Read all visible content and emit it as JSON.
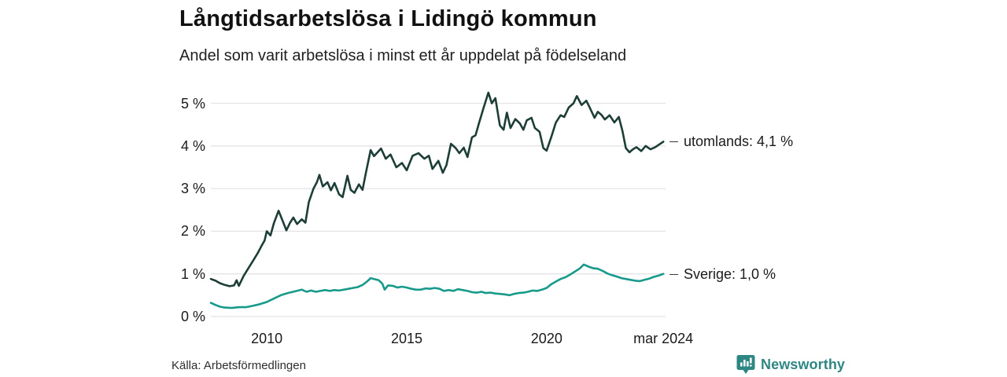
{
  "header": {
    "title": "Långtidsarbetslösa i Lidingö kommun",
    "subtitle": "Andel som varit arbetslösa i minst ett år uppdelat på födelseland"
  },
  "footer": {
    "source": "Källa: Arbetsförmedlingen",
    "brand_name": "Newsworthy",
    "brand_icon": "bar-chart-speech-bubble-icon"
  },
  "colors": {
    "utomlands_line": "#1d3e37",
    "sverige_line": "#189a8b",
    "grid": "#e3e3e8",
    "text": "#1a1a1a",
    "brand_teal": "#2e8783"
  },
  "chart_data": {
    "type": "line",
    "title": "Långtidsarbetslösa i Lidingö kommun",
    "subtitle": "Andel som varit arbetslösa i minst ett år uppdelat på födelseland",
    "x_unit": "year (monthly series, jan 2008 – mar 2024)",
    "xlim": [
      2008.0,
      2024.25
    ],
    "ylim": [
      0,
      5.5
    ],
    "grid": "horizontal",
    "legend_position": "end-of-line-labels",
    "y_ticks": [
      {
        "v": 0,
        "label": "0 %"
      },
      {
        "v": 1,
        "label": "1 %"
      },
      {
        "v": 2,
        "label": "2 %"
      },
      {
        "v": 3,
        "label": "3 %"
      },
      {
        "v": 4,
        "label": "4 %"
      },
      {
        "v": 5,
        "label": "5 %"
      }
    ],
    "x_ticks": [
      {
        "x": 2010,
        "label": "2010"
      },
      {
        "x": 2015,
        "label": "2015"
      },
      {
        "x": 2020,
        "label": "2020"
      },
      {
        "x": 2024.17,
        "label": "mar 2024"
      }
    ],
    "series": [
      {
        "name": "utomlands",
        "label": "utomlands: 4,1 %",
        "last_value": "4,1 %",
        "color": "#1d3e37",
        "points": [
          [
            2008.0,
            0.88
          ],
          [
            2008.17,
            0.84
          ],
          [
            2008.33,
            0.78
          ],
          [
            2008.5,
            0.74
          ],
          [
            2008.67,
            0.71
          ],
          [
            2008.83,
            0.73
          ],
          [
            2008.92,
            0.85
          ],
          [
            2009.0,
            0.72
          ],
          [
            2009.17,
            0.95
          ],
          [
            2009.33,
            1.12
          ],
          [
            2009.5,
            1.3
          ],
          [
            2009.67,
            1.48
          ],
          [
            2009.83,
            1.68
          ],
          [
            2009.92,
            1.78
          ],
          [
            2010.0,
            2.0
          ],
          [
            2010.13,
            1.9
          ],
          [
            2010.25,
            2.18
          ],
          [
            2010.42,
            2.48
          ],
          [
            2010.58,
            2.22
          ],
          [
            2010.7,
            2.02
          ],
          [
            2010.83,
            2.2
          ],
          [
            2010.95,
            2.32
          ],
          [
            2011.08,
            2.17
          ],
          [
            2011.25,
            2.28
          ],
          [
            2011.38,
            2.2
          ],
          [
            2011.5,
            2.68
          ],
          [
            2011.67,
            3.0
          ],
          [
            2011.79,
            3.15
          ],
          [
            2011.88,
            3.32
          ],
          [
            2012.0,
            3.05
          ],
          [
            2012.17,
            3.15
          ],
          [
            2012.29,
            2.96
          ],
          [
            2012.42,
            3.13
          ],
          [
            2012.58,
            2.87
          ],
          [
            2012.71,
            2.8
          ],
          [
            2012.88,
            3.3
          ],
          [
            2013.0,
            2.97
          ],
          [
            2013.13,
            2.9
          ],
          [
            2013.29,
            3.1
          ],
          [
            2013.42,
            2.97
          ],
          [
            2013.54,
            3.37
          ],
          [
            2013.71,
            3.9
          ],
          [
            2013.83,
            3.76
          ],
          [
            2013.96,
            3.85
          ],
          [
            2014.08,
            3.94
          ],
          [
            2014.25,
            3.7
          ],
          [
            2014.42,
            3.8
          ],
          [
            2014.63,
            3.5
          ],
          [
            2014.83,
            3.6
          ],
          [
            2015.0,
            3.43
          ],
          [
            2015.21,
            3.77
          ],
          [
            2015.42,
            3.83
          ],
          [
            2015.63,
            3.7
          ],
          [
            2015.79,
            3.77
          ],
          [
            2015.92,
            3.46
          ],
          [
            2016.13,
            3.65
          ],
          [
            2016.29,
            3.37
          ],
          [
            2016.42,
            3.55
          ],
          [
            2016.58,
            4.05
          ],
          [
            2016.75,
            3.95
          ],
          [
            2016.88,
            3.83
          ],
          [
            2017.04,
            3.96
          ],
          [
            2017.17,
            3.74
          ],
          [
            2017.33,
            4.2
          ],
          [
            2017.46,
            4.25
          ],
          [
            2017.58,
            4.53
          ],
          [
            2017.75,
            4.9
          ],
          [
            2017.92,
            5.25
          ],
          [
            2018.04,
            5.0
          ],
          [
            2018.17,
            5.12
          ],
          [
            2018.33,
            4.48
          ],
          [
            2018.46,
            4.38
          ],
          [
            2018.58,
            4.78
          ],
          [
            2018.71,
            4.42
          ],
          [
            2018.88,
            4.63
          ],
          [
            2019.04,
            4.53
          ],
          [
            2019.17,
            4.38
          ],
          [
            2019.29,
            4.6
          ],
          [
            2019.46,
            4.66
          ],
          [
            2019.58,
            4.42
          ],
          [
            2019.75,
            4.33
          ],
          [
            2019.88,
            3.95
          ],
          [
            2020.0,
            3.89
          ],
          [
            2020.17,
            4.22
          ],
          [
            2020.33,
            4.55
          ],
          [
            2020.5,
            4.72
          ],
          [
            2020.63,
            4.68
          ],
          [
            2020.79,
            4.9
          ],
          [
            2020.96,
            5.0
          ],
          [
            2021.08,
            5.17
          ],
          [
            2021.25,
            4.96
          ],
          [
            2021.42,
            5.06
          ],
          [
            2021.54,
            4.9
          ],
          [
            2021.71,
            4.66
          ],
          [
            2021.83,
            4.8
          ],
          [
            2021.96,
            4.73
          ],
          [
            2022.08,
            4.62
          ],
          [
            2022.25,
            4.72
          ],
          [
            2022.42,
            4.55
          ],
          [
            2022.58,
            4.68
          ],
          [
            2022.71,
            4.35
          ],
          [
            2022.83,
            3.95
          ],
          [
            2022.96,
            3.85
          ],
          [
            2023.08,
            3.92
          ],
          [
            2023.21,
            3.97
          ],
          [
            2023.38,
            3.88
          ],
          [
            2023.54,
            4.0
          ],
          [
            2023.71,
            3.92
          ],
          [
            2023.88,
            3.97
          ],
          [
            2024.04,
            4.04
          ],
          [
            2024.17,
            4.1
          ]
        ]
      },
      {
        "name": "Sverige",
        "label": "Sverige: 1,0 %",
        "last_value": "1,0 %",
        "color": "#189a8b",
        "points": [
          [
            2008.0,
            0.32
          ],
          [
            2008.17,
            0.27
          ],
          [
            2008.33,
            0.23
          ],
          [
            2008.5,
            0.21
          ],
          [
            2008.75,
            0.2
          ],
          [
            2009.0,
            0.22
          ],
          [
            2009.25,
            0.22
          ],
          [
            2009.5,
            0.25
          ],
          [
            2009.75,
            0.29
          ],
          [
            2010.0,
            0.34
          ],
          [
            2010.25,
            0.42
          ],
          [
            2010.5,
            0.5
          ],
          [
            2010.75,
            0.55
          ],
          [
            2011.0,
            0.59
          ],
          [
            2011.25,
            0.63
          ],
          [
            2011.42,
            0.58
          ],
          [
            2011.58,
            0.61
          ],
          [
            2011.75,
            0.58
          ],
          [
            2011.92,
            0.6
          ],
          [
            2012.08,
            0.62
          ],
          [
            2012.25,
            0.6
          ],
          [
            2012.42,
            0.62
          ],
          [
            2012.58,
            0.61
          ],
          [
            2012.75,
            0.63
          ],
          [
            2012.92,
            0.65
          ],
          [
            2013.08,
            0.67
          ],
          [
            2013.25,
            0.69
          ],
          [
            2013.42,
            0.74
          ],
          [
            2013.58,
            0.82
          ],
          [
            2013.71,
            0.9
          ],
          [
            2013.83,
            0.88
          ],
          [
            2014.0,
            0.85
          ],
          [
            2014.13,
            0.77
          ],
          [
            2014.21,
            0.63
          ],
          [
            2014.33,
            0.73
          ],
          [
            2014.5,
            0.72
          ],
          [
            2014.67,
            0.68
          ],
          [
            2014.83,
            0.7
          ],
          [
            2015.0,
            0.68
          ],
          [
            2015.17,
            0.65
          ],
          [
            2015.33,
            0.63
          ],
          [
            2015.5,
            0.63
          ],
          [
            2015.67,
            0.66
          ],
          [
            2015.83,
            0.65
          ],
          [
            2016.0,
            0.67
          ],
          [
            2016.17,
            0.65
          ],
          [
            2016.33,
            0.6
          ],
          [
            2016.5,
            0.62
          ],
          [
            2016.67,
            0.6
          ],
          [
            2016.83,
            0.64
          ],
          [
            2017.0,
            0.62
          ],
          [
            2017.17,
            0.6
          ],
          [
            2017.33,
            0.57
          ],
          [
            2017.5,
            0.56
          ],
          [
            2017.67,
            0.58
          ],
          [
            2017.83,
            0.55
          ],
          [
            2018.0,
            0.56
          ],
          [
            2018.17,
            0.54
          ],
          [
            2018.33,
            0.53
          ],
          [
            2018.5,
            0.52
          ],
          [
            2018.67,
            0.5
          ],
          [
            2018.83,
            0.53
          ],
          [
            2019.0,
            0.55
          ],
          [
            2019.17,
            0.56
          ],
          [
            2019.33,
            0.58
          ],
          [
            2019.5,
            0.61
          ],
          [
            2019.67,
            0.6
          ],
          [
            2019.83,
            0.63
          ],
          [
            2020.0,
            0.67
          ],
          [
            2020.17,
            0.76
          ],
          [
            2020.33,
            0.82
          ],
          [
            2020.5,
            0.88
          ],
          [
            2020.67,
            0.92
          ],
          [
            2020.83,
            0.98
          ],
          [
            2021.0,
            1.05
          ],
          [
            2021.17,
            1.12
          ],
          [
            2021.33,
            1.22
          ],
          [
            2021.5,
            1.17
          ],
          [
            2021.67,
            1.13
          ],
          [
            2021.83,
            1.12
          ],
          [
            2022.0,
            1.07
          ],
          [
            2022.17,
            1.01
          ],
          [
            2022.33,
            0.97
          ],
          [
            2022.5,
            0.94
          ],
          [
            2022.67,
            0.9
          ],
          [
            2022.83,
            0.88
          ],
          [
            2023.0,
            0.86
          ],
          [
            2023.17,
            0.84
          ],
          [
            2023.33,
            0.83
          ],
          [
            2023.5,
            0.86
          ],
          [
            2023.67,
            0.89
          ],
          [
            2023.83,
            0.93
          ],
          [
            2024.0,
            0.96
          ],
          [
            2024.17,
            1.0
          ]
        ]
      }
    ]
  }
}
